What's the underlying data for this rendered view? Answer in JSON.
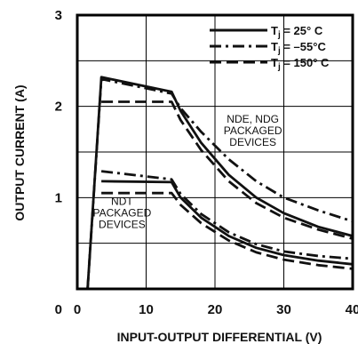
{
  "chart_data": {
    "type": "line",
    "title": "",
    "xlabel": "INPUT-OUTPUT DIFFERENTIAL (V)",
    "ylabel": "OUTPUT CURRENT (A)",
    "xlim": [
      0,
      40
    ],
    "ylim": [
      0,
      3
    ],
    "x_ticks": [
      0,
      10,
      20,
      30,
      40
    ],
    "x_tick_labels": [
      "0",
      "10",
      "20",
      "30",
      "40"
    ],
    "y_ticks": [
      0,
      1,
      2,
      3
    ],
    "y_tick_labels": [
      "0",
      "1",
      "2",
      "3"
    ],
    "grid": true,
    "grid_x": [
      0,
      10,
      20,
      30,
      40
    ],
    "grid_y": [
      0,
      0.5,
      1,
      1.5,
      2,
      2.5,
      3
    ],
    "legend_position": "top-right",
    "legend": [
      {
        "style": "solid",
        "prefix": "T",
        "sub": "j",
        "text": " = 25° C"
      },
      {
        "style": "dashdot",
        "prefix": "T",
        "sub": "j",
        "text": " = –55°C"
      },
      {
        "style": "dashed",
        "prefix": "T",
        "sub": "j",
        "text": " = 150° C"
      }
    ],
    "annotations": [
      {
        "lines": [
          "NDE, NDG",
          "PACKAGED",
          "DEVICES"
        ],
        "x": 25.5,
        "y": 1.82
      },
      {
        "lines": [
          "NDT",
          "PACKAGED",
          "DEVICES"
        ],
        "x": 6.5,
        "y": 0.92
      }
    ],
    "series": [
      {
        "style": "solid",
        "group": "upper",
        "points": [
          [
            1.5,
            0
          ],
          [
            3.5,
            2.32
          ],
          [
            13.7,
            2.16
          ],
          [
            15,
            1.95
          ],
          [
            18,
            1.6
          ],
          [
            22,
            1.25
          ],
          [
            26,
            1.0
          ],
          [
            30,
            0.83
          ],
          [
            35,
            0.68
          ],
          [
            40,
            0.58
          ]
        ]
      },
      {
        "style": "dashdot",
        "group": "upper",
        "points": [
          [
            1.5,
            0
          ],
          [
            3.5,
            2.3
          ],
          [
            13.7,
            2.14
          ],
          [
            15,
            1.98
          ],
          [
            18,
            1.72
          ],
          [
            22,
            1.42
          ],
          [
            26,
            1.18
          ],
          [
            30,
            1.0
          ],
          [
            35,
            0.86
          ],
          [
            40,
            0.74
          ]
        ]
      },
      {
        "style": "dashed",
        "group": "upper",
        "points": [
          [
            3.5,
            2.05
          ],
          [
            13.7,
            2.05
          ],
          [
            15,
            1.85
          ],
          [
            18,
            1.52
          ],
          [
            22,
            1.18
          ],
          [
            26,
            0.94
          ],
          [
            30,
            0.78
          ],
          [
            35,
            0.65
          ],
          [
            40,
            0.55
          ]
        ]
      },
      {
        "style": "solid",
        "group": "lower",
        "points": [
          [
            3.5,
            1.18
          ],
          [
            13.7,
            1.17
          ],
          [
            15,
            1.0
          ],
          [
            18,
            0.78
          ],
          [
            22,
            0.58
          ],
          [
            26,
            0.45
          ],
          [
            30,
            0.37
          ],
          [
            35,
            0.31
          ],
          [
            40,
            0.27
          ]
        ]
      },
      {
        "style": "dashdot",
        "group": "lower",
        "points": [
          [
            3.5,
            1.29
          ],
          [
            13.7,
            1.2
          ],
          [
            15,
            1.04
          ],
          [
            18,
            0.82
          ],
          [
            22,
            0.62
          ],
          [
            26,
            0.49
          ],
          [
            30,
            0.41
          ],
          [
            35,
            0.36
          ],
          [
            40,
            0.33
          ]
        ]
      },
      {
        "style": "dashed",
        "group": "lower",
        "points": [
          [
            3.5,
            1.05
          ],
          [
            13.7,
            1.05
          ],
          [
            15,
            0.92
          ],
          [
            18,
            0.72
          ],
          [
            22,
            0.53
          ],
          [
            26,
            0.4
          ],
          [
            30,
            0.32
          ],
          [
            35,
            0.26
          ],
          [
            40,
            0.22
          ]
        ]
      }
    ]
  }
}
